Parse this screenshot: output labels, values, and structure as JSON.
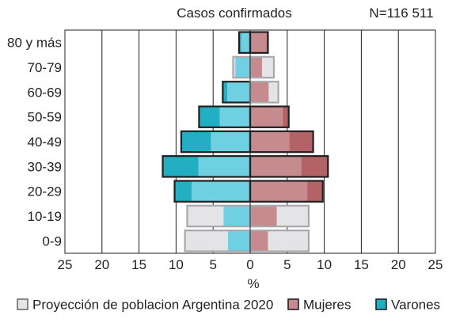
{
  "chart_data": {
    "type": "bar",
    "orientation": "horizontal",
    "title": "Casos confirmados",
    "subtitle": "N=116 511",
    "xlabel": "%",
    "ylabel": "",
    "xlim": [
      -25,
      25
    ],
    "x_ticks": [
      -25,
      -20,
      -15,
      -10,
      -5,
      0,
      5,
      10,
      15,
      20,
      25
    ],
    "x_tick_labels": [
      "25",
      "20",
      "15",
      "10",
      "5",
      "0",
      "5",
      "10",
      "15",
      "20",
      "25"
    ],
    "grid": "vertical",
    "legend_position": "bottom",
    "categories": [
      "80 y más",
      "70-79",
      "60-69",
      "50-59",
      "40-49",
      "30-39",
      "20-29",
      "10-19",
      "0-9"
    ],
    "series": [
      {
        "name": "Proyección de poblacion Argentina 2020",
        "role": "projection",
        "color": "#e4e4e6",
        "edge_color": "#a7a9ac",
        "values_varones": [
          1.2,
          2.3,
          3.1,
          4.1,
          5.3,
          7.0,
          7.9,
          8.5,
          8.8
        ],
        "values_mujeres": [
          2.2,
          3.2,
          3.8,
          4.4,
          5.3,
          6.9,
          7.7,
          7.9,
          7.9
        ]
      },
      {
        "name": "Mujeres",
        "side": "right",
        "color": "#c58b8e",
        "color_excess": "#b36266",
        "values": [
          2.4,
          1.6,
          2.5,
          5.2,
          8.5,
          10.5,
          9.8,
          3.6,
          2.4
        ]
      },
      {
        "name": "Varones",
        "side": "left",
        "color": "#6ed0e0",
        "color_excess": "#23aec4",
        "values": [
          1.5,
          2.0,
          3.7,
          6.9,
          9.3,
          11.8,
          10.2,
          3.6,
          3.0
        ]
      }
    ]
  }
}
